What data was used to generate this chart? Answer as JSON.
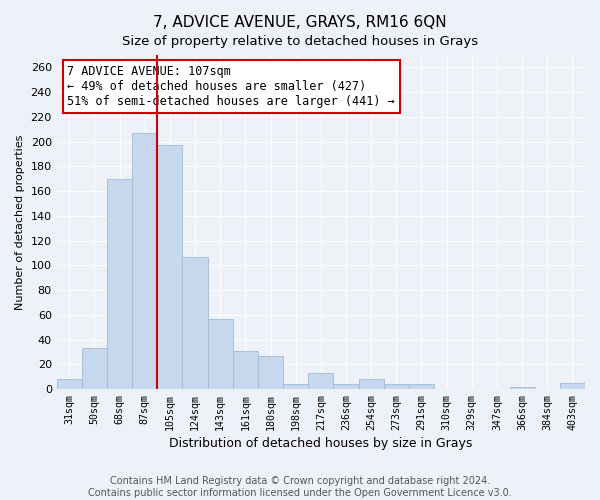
{
  "title": "7, ADVICE AVENUE, GRAYS, RM16 6QN",
  "subtitle": "Size of property relative to detached houses in Grays",
  "xlabel": "Distribution of detached houses by size in Grays",
  "ylabel": "Number of detached properties",
  "categories": [
    "31sqm",
    "50sqm",
    "68sqm",
    "87sqm",
    "105sqm",
    "124sqm",
    "143sqm",
    "161sqm",
    "180sqm",
    "198sqm",
    "217sqm",
    "236sqm",
    "254sqm",
    "273sqm",
    "291sqm",
    "310sqm",
    "329sqm",
    "347sqm",
    "366sqm",
    "384sqm",
    "403sqm"
  ],
  "values": [
    8,
    33,
    170,
    207,
    197,
    107,
    57,
    31,
    27,
    4,
    13,
    4,
    8,
    4,
    4,
    0,
    0,
    0,
    2,
    0,
    5
  ],
  "bar_color": "#c5d8ed",
  "bar_edge_color": "#a0bcd8",
  "vline_x": 4,
  "vline_color": "#cc0000",
  "annotation_title": "7 ADVICE AVENUE: 107sqm",
  "annotation_line1": "← 49% of detached houses are smaller (427)",
  "annotation_line2": "51% of semi-detached houses are larger (441) →",
  "ylim": [
    0,
    270
  ],
  "yticks": [
    0,
    20,
    40,
    60,
    80,
    100,
    120,
    140,
    160,
    180,
    200,
    220,
    240,
    260
  ],
  "footer_line1": "Contains HM Land Registry data © Crown copyright and database right 2024.",
  "footer_line2": "Contains public sector information licensed under the Open Government Licence v3.0.",
  "background_color": "#eef2f8",
  "plot_bg_color": "#eef2f8",
  "title_fontsize": 11,
  "xlabel_fontsize": 9,
  "ylabel_fontsize": 8,
  "footer_fontsize": 7,
  "annotation_fontsize": 8.5
}
